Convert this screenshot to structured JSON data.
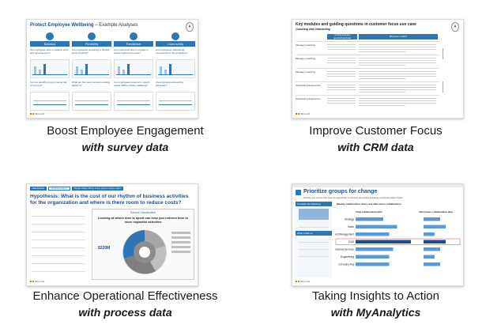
{
  "cards": [
    {
      "caption": "Boost Employee Engagement",
      "subcaption": "with survey data",
      "slide_title": "Protect Employee Wellbeing",
      "slide_title_suffix": " – Example Analyses",
      "columns": [
        "Balance",
        "Flexibility",
        "Resilience",
        "Community"
      ],
      "questions": [
        "Are employees able to balance work and personal time?",
        "Are employees embracing a flexible work schedule?",
        "Are employees able to engage in uninterrupted focus time?",
        "Are employees maintaining connections in the workplace?"
      ],
      "questions_2": [
        "Can we identify groups most at risk of burnout?",
        "What are the most common working patterns?",
        "Can employees respond to urgent needs without risking wellbeing?",
        "Are employees interacting informally?"
      ],
      "brand": "Microsoft"
    },
    {
      "caption": "Improve Customer Focus",
      "subcaption": "with CRM data",
      "slide_title": "Key modules and guiding questions in customer focus use case",
      "slide_subtitle": "Coaching and Onboarding",
      "header_cols": [
        "Guiding business question/hypothesis",
        "Why does it matter?"
      ],
      "rows": [
        "Manager Coaching",
        "Manager Coaching",
        "Manager Coaching",
        "Onboarding Experience",
        "Onboarding Experience"
      ],
      "brand": "Microsoft"
    },
    {
      "caption": "Enhance Operational Effectiveness",
      "subcaption": "with process data",
      "tabs": [
        "Data Analysis",
        "Build the Analysis",
        "Sample Output: Where is time spent to reduce costs?"
      ],
      "slide_title": "Hypothesis: What is the cost of our rhythm of business activities for the organization and where is there room to reduce costs?",
      "sample_label": "Sample Visualization",
      "chart_heading": "Looking at where time is spent can help you redirect time to more impactful activities",
      "big_value": "$220M",
      "brand": "Microsoft"
    },
    {
      "caption": "Taking Insights to Action",
      "subcaption": "with MyAnalytics",
      "slide_title": "Prioritize groups for change",
      "slide_subtitle": "Identify your groups that have an opportunity to improve and where a change could have large impact",
      "side_head_1": "Consider the following",
      "side_head_2": "What it tells us",
      "chart_head_1": "Weekly collaboration hours and after-hours collaboration",
      "col_head_1": "Total collaboration time",
      "col_head_2": "After-hours collaboration time",
      "groups": [
        "Strategy",
        "Sales",
        "Product Management",
        "R&D",
        "Professional Services",
        "Engineering",
        "Company Avg"
      ],
      "collab_hours": [
        14,
        21,
        17,
        28,
        19,
        17,
        17
      ],
      "after_hours": [
        3,
        4,
        2,
        4,
        3,
        2,
        3
      ],
      "brand": "Microsoft"
    }
  ]
}
